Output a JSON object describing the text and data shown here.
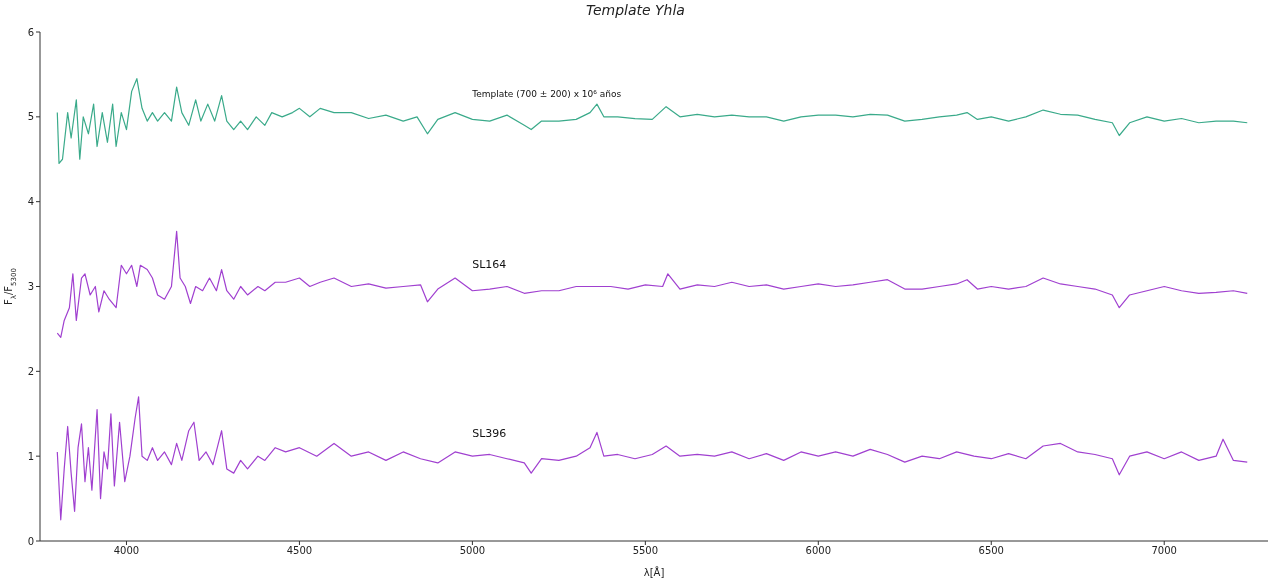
{
  "chart_data": {
    "type": "line",
    "title": "Template Yhla",
    "xlabel": "λ[Å]",
    "ylabel": "F$_{λ}$/F$_{5300}$",
    "xlim": [
      3750,
      7300
    ],
    "xticks": [
      4000,
      4500,
      5000,
      5500,
      6000,
      6500,
      7000
    ],
    "ylim": [
      0,
      6
    ],
    "yticks": [
      0,
      1,
      2,
      3,
      4,
      5,
      6
    ],
    "grid": false,
    "marker": "none",
    "line_style": "solid",
    "series": [
      {
        "name": "Template (700 ± 200) x 10⁶ años",
        "color": "#3aaa8a",
        "x": [
          3800,
          3805,
          3815,
          3830,
          3840,
          3855,
          3865,
          3875,
          3890,
          3905,
          3915,
          3930,
          3945,
          3960,
          3970,
          3985,
          4000,
          4015,
          4030,
          4045,
          4060,
          4075,
          4090,
          4110,
          4130,
          4145,
          4160,
          4180,
          4200,
          4215,
          4235,
          4255,
          4275,
          4290,
          4310,
          4330,
          4350,
          4375,
          4400,
          4420,
          4450,
          4480,
          4500,
          4530,
          4560,
          4600,
          4650,
          4700,
          4750,
          4800,
          4840,
          4870,
          4900,
          4950,
          5000,
          5050,
          5100,
          5150,
          5170,
          5200,
          5250,
          5300,
          5340,
          5360,
          5380,
          5420,
          5470,
          5520,
          5560,
          5600,
          5650,
          5700,
          5750,
          5800,
          5850,
          5900,
          5950,
          6000,
          6050,
          6100,
          6150,
          6200,
          6250,
          6300,
          6350,
          6400,
          6430,
          6460,
          6500,
          6550,
          6600,
          6650,
          6700,
          6750,
          6800,
          6850,
          6870,
          6900,
          6950,
          7000,
          7050,
          7100,
          7150,
          7200,
          7240
        ],
        "values": [
          5.05,
          4.45,
          4.5,
          5.05,
          4.75,
          5.2,
          4.5,
          5.0,
          4.8,
          5.15,
          4.65,
          5.05,
          4.7,
          5.15,
          4.65,
          5.05,
          4.85,
          5.3,
          5.45,
          5.1,
          4.95,
          5.05,
          4.95,
          5.05,
          4.95,
          5.35,
          5.05,
          4.9,
          5.2,
          4.95,
          5.15,
          4.95,
          5.25,
          4.95,
          4.85,
          4.95,
          4.85,
          5.0,
          4.9,
          5.05,
          5.0,
          5.05,
          5.1,
          5.0,
          5.1,
          5.05,
          5.05,
          4.98,
          5.02,
          4.95,
          5.0,
          4.8,
          4.97,
          5.05,
          4.97,
          4.95,
          5.02,
          4.9,
          4.85,
          4.95,
          4.95,
          4.97,
          5.05,
          5.15,
          5.0,
          5.0,
          4.98,
          4.97,
          5.12,
          5.0,
          5.03,
          5.0,
          5.02,
          5.0,
          5.0,
          4.95,
          5.0,
          5.02,
          5.02,
          5.0,
          5.03,
          5.02,
          4.95,
          4.97,
          5.0,
          5.02,
          5.05,
          4.97,
          5.0,
          4.95,
          5.0,
          5.08,
          5.03,
          5.02,
          4.97,
          4.93,
          4.78,
          4.93,
          5.0,
          4.95,
          4.98,
          4.93,
          4.95,
          4.95,
          4.93
        ]
      },
      {
        "name": "SL164",
        "color": "#a040d0",
        "x": [
          3800,
          3810,
          3820,
          3835,
          3845,
          3855,
          3870,
          3880,
          3895,
          3910,
          3920,
          3935,
          3950,
          3960,
          3970,
          3985,
          4000,
          4015,
          4030,
          4040,
          4060,
          4075,
          4090,
          4110,
          4130,
          4145,
          4155,
          4170,
          4185,
          4200,
          4220,
          4240,
          4260,
          4275,
          4290,
          4310,
          4330,
          4350,
          4380,
          4400,
          4430,
          4460,
          4500,
          4530,
          4560,
          4600,
          4650,
          4700,
          4750,
          4800,
          4850,
          4870,
          4900,
          4950,
          5000,
          5050,
          5100,
          5150,
          5200,
          5250,
          5300,
          5350,
          5400,
          5450,
          5500,
          5550,
          5565,
          5600,
          5650,
          5700,
          5750,
          5800,
          5850,
          5900,
          5950,
          6000,
          6050,
          6100,
          6150,
          6200,
          6250,
          6300,
          6350,
          6400,
          6430,
          6460,
          6500,
          6550,
          6600,
          6650,
          6700,
          6750,
          6800,
          6850,
          6870,
          6900,
          6950,
          7000,
          7050,
          7100,
          7150,
          7200,
          7240
        ],
        "values": [
          2.45,
          2.4,
          2.6,
          2.75,
          3.15,
          2.6,
          3.1,
          3.15,
          2.9,
          3.0,
          2.7,
          2.95,
          2.85,
          2.8,
          2.75,
          3.25,
          3.15,
          3.25,
          3.0,
          3.25,
          3.2,
          3.1,
          2.9,
          2.85,
          3.0,
          3.65,
          3.1,
          3.0,
          2.8,
          3.0,
          2.95,
          3.1,
          2.95,
          3.2,
          2.95,
          2.85,
          3.0,
          2.9,
          3.0,
          2.95,
          3.05,
          3.05,
          3.1,
          3.0,
          3.05,
          3.1,
          3.0,
          3.03,
          2.98,
          3.0,
          3.02,
          2.82,
          2.97,
          3.1,
          2.95,
          2.97,
          3.0,
          2.92,
          2.95,
          2.95,
          3.0,
          3.0,
          3.0,
          2.97,
          3.02,
          3.0,
          3.15,
          2.97,
          3.02,
          3.0,
          3.05,
          3.0,
          3.02,
          2.97,
          3.0,
          3.03,
          3.0,
          3.02,
          3.05,
          3.08,
          2.97,
          2.97,
          3.0,
          3.03,
          3.08,
          2.97,
          3.0,
          2.97,
          3.0,
          3.1,
          3.03,
          3.0,
          2.97,
          2.9,
          2.75,
          2.9,
          2.95,
          3.0,
          2.95,
          2.92,
          2.93,
          2.95,
          2.92
        ]
      },
      {
        "name": "SL396",
        "color": "#a040d0",
        "x": [
          3800,
          3810,
          3820,
          3830,
          3840,
          3850,
          3860,
          3870,
          3880,
          3890,
          3900,
          3915,
          3925,
          3935,
          3945,
          3955,
          3965,
          3980,
          3995,
          4010,
          4025,
          4035,
          4045,
          4060,
          4075,
          4090,
          4110,
          4130,
          4145,
          4160,
          4180,
          4195,
          4210,
          4230,
          4250,
          4275,
          4290,
          4310,
          4330,
          4350,
          4380,
          4400,
          4430,
          4460,
          4500,
          4550,
          4600,
          4650,
          4700,
          4750,
          4800,
          4850,
          4900,
          4950,
          5000,
          5050,
          5100,
          5150,
          5170,
          5200,
          5250,
          5300,
          5340,
          5360,
          5380,
          5420,
          5470,
          5520,
          5560,
          5600,
          5650,
          5700,
          5750,
          5800,
          5850,
          5900,
          5950,
          6000,
          6050,
          6100,
          6150,
          6200,
          6250,
          6300,
          6350,
          6400,
          6450,
          6500,
          6550,
          6600,
          6650,
          6700,
          6750,
          6800,
          6850,
          6870,
          6900,
          6950,
          7000,
          7050,
          7100,
          7150,
          7170,
          7200,
          7240
        ],
        "values": [
          1.05,
          0.25,
          0.85,
          1.35,
          0.8,
          0.35,
          1.1,
          1.38,
          0.7,
          1.1,
          0.6,
          1.55,
          0.5,
          1.05,
          0.85,
          1.5,
          0.65,
          1.4,
          0.7,
          1.0,
          1.45,
          1.7,
          1.0,
          0.95,
          1.1,
          0.95,
          1.05,
          0.9,
          1.15,
          0.95,
          1.3,
          1.4,
          0.95,
          1.05,
          0.9,
          1.3,
          0.85,
          0.8,
          0.95,
          0.85,
          1.0,
          0.95,
          1.1,
          1.05,
          1.1,
          1.0,
          1.15,
          1.0,
          1.05,
          0.95,
          1.05,
          0.97,
          0.92,
          1.05,
          1.0,
          1.02,
          0.97,
          0.92,
          0.8,
          0.97,
          0.95,
          1.0,
          1.1,
          1.28,
          1.0,
          1.02,
          0.97,
          1.02,
          1.12,
          1.0,
          1.02,
          1.0,
          1.05,
          0.97,
          1.03,
          0.95,
          1.05,
          1.0,
          1.05,
          1.0,
          1.08,
          1.02,
          0.93,
          1.0,
          0.97,
          1.05,
          1.0,
          0.97,
          1.03,
          0.97,
          1.12,
          1.15,
          1.05,
          1.02,
          0.97,
          0.78,
          1.0,
          1.05,
          0.97,
          1.05,
          0.95,
          1.0,
          1.2,
          0.95,
          0.93
        ]
      }
    ]
  }
}
